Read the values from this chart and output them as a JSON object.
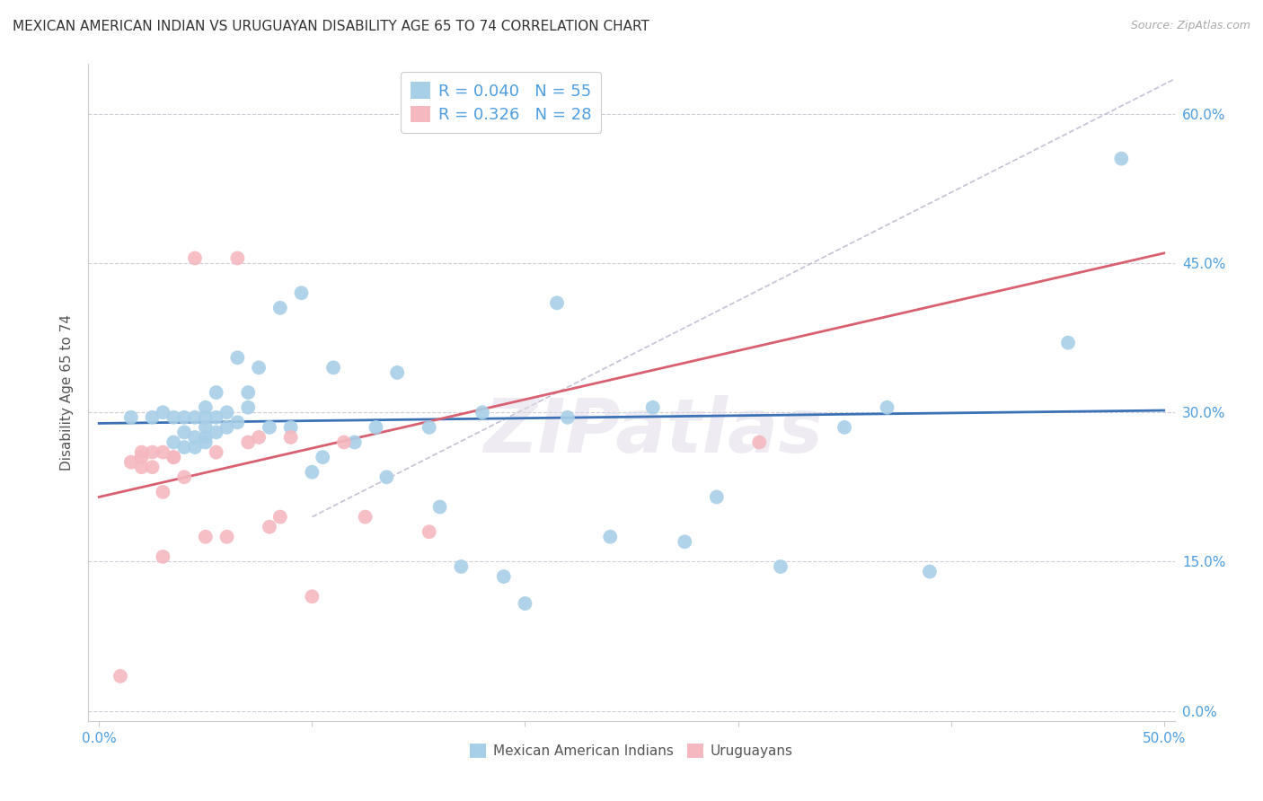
{
  "title": "MEXICAN AMERICAN INDIAN VS URUGUAYAN DISABILITY AGE 65 TO 74 CORRELATION CHART",
  "source": "Source: ZipAtlas.com",
  "xlabel_ticks": [
    "0.0%",
    "",
    "",
    "",
    "",
    "50.0%"
  ],
  "ylabel_ticks": [
    "0.0%",
    "15.0%",
    "30.0%",
    "45.0%",
    "60.0%"
  ],
  "xlabel_values": [
    0.0,
    0.1,
    0.2,
    0.3,
    0.4,
    0.5
  ],
  "ylabel_values": [
    0.0,
    0.15,
    0.3,
    0.45,
    0.6
  ],
  "xlim": [
    -0.005,
    0.505
  ],
  "ylim": [
    -0.01,
    0.65
  ],
  "ylabel": "Disability Age 65 to 74",
  "blue_R": "0.040",
  "blue_N": "55",
  "pink_R": "0.326",
  "pink_N": "28",
  "blue_scatter_x": [
    0.015,
    0.025,
    0.03,
    0.035,
    0.035,
    0.04,
    0.04,
    0.04,
    0.045,
    0.045,
    0.045,
    0.05,
    0.05,
    0.05,
    0.05,
    0.05,
    0.055,
    0.055,
    0.055,
    0.06,
    0.06,
    0.065,
    0.065,
    0.07,
    0.07,
    0.075,
    0.08,
    0.085,
    0.09,
    0.095,
    0.1,
    0.105,
    0.11,
    0.12,
    0.13,
    0.135,
    0.14,
    0.155,
    0.16,
    0.17,
    0.18,
    0.19,
    0.2,
    0.215,
    0.22,
    0.24,
    0.26,
    0.275,
    0.29,
    0.32,
    0.35,
    0.37,
    0.39,
    0.455,
    0.48
  ],
  "blue_scatter_y": [
    0.295,
    0.295,
    0.3,
    0.27,
    0.295,
    0.265,
    0.28,
    0.295,
    0.265,
    0.275,
    0.295,
    0.27,
    0.275,
    0.285,
    0.295,
    0.305,
    0.28,
    0.295,
    0.32,
    0.285,
    0.3,
    0.29,
    0.355,
    0.305,
    0.32,
    0.345,
    0.285,
    0.405,
    0.285,
    0.42,
    0.24,
    0.255,
    0.345,
    0.27,
    0.285,
    0.235,
    0.34,
    0.285,
    0.205,
    0.145,
    0.3,
    0.135,
    0.108,
    0.41,
    0.295,
    0.175,
    0.305,
    0.17,
    0.215,
    0.145,
    0.285,
    0.305,
    0.14,
    0.37,
    0.555
  ],
  "pink_scatter_x": [
    0.01,
    0.015,
    0.02,
    0.02,
    0.025,
    0.025,
    0.03,
    0.03,
    0.035,
    0.035,
    0.04,
    0.045,
    0.05,
    0.055,
    0.06,
    0.065,
    0.07,
    0.075,
    0.08,
    0.085,
    0.09,
    0.1,
    0.115,
    0.125,
    0.155,
    0.31,
    0.02,
    0.03
  ],
  "pink_scatter_y": [
    0.035,
    0.25,
    0.26,
    0.255,
    0.245,
    0.26,
    0.155,
    0.22,
    0.255,
    0.255,
    0.235,
    0.455,
    0.175,
    0.26,
    0.175,
    0.455,
    0.27,
    0.275,
    0.185,
    0.195,
    0.275,
    0.115,
    0.27,
    0.195,
    0.18,
    0.27,
    0.245,
    0.26
  ],
  "blue_line_x": [
    0.0,
    0.5
  ],
  "blue_line_y": [
    0.289,
    0.302
  ],
  "pink_line_x": [
    0.0,
    0.5
  ],
  "pink_line_y": [
    0.215,
    0.46
  ],
  "dashed_line_x": [
    0.1,
    0.505
  ],
  "dashed_line_y": [
    0.195,
    0.635
  ],
  "scatter_color_blue": "#a8cfe8",
  "scatter_color_pink": "#f5b8c0",
  "line_color_blue": "#3a72b5",
  "line_color_pink": "#d96070",
  "dashed_line_color": "#c8c0d4",
  "background_color": "#ffffff",
  "watermark": "ZIPatlas",
  "tick_color": "#4d9de0",
  "title_fontsize": 11,
  "source_fontsize": 9
}
